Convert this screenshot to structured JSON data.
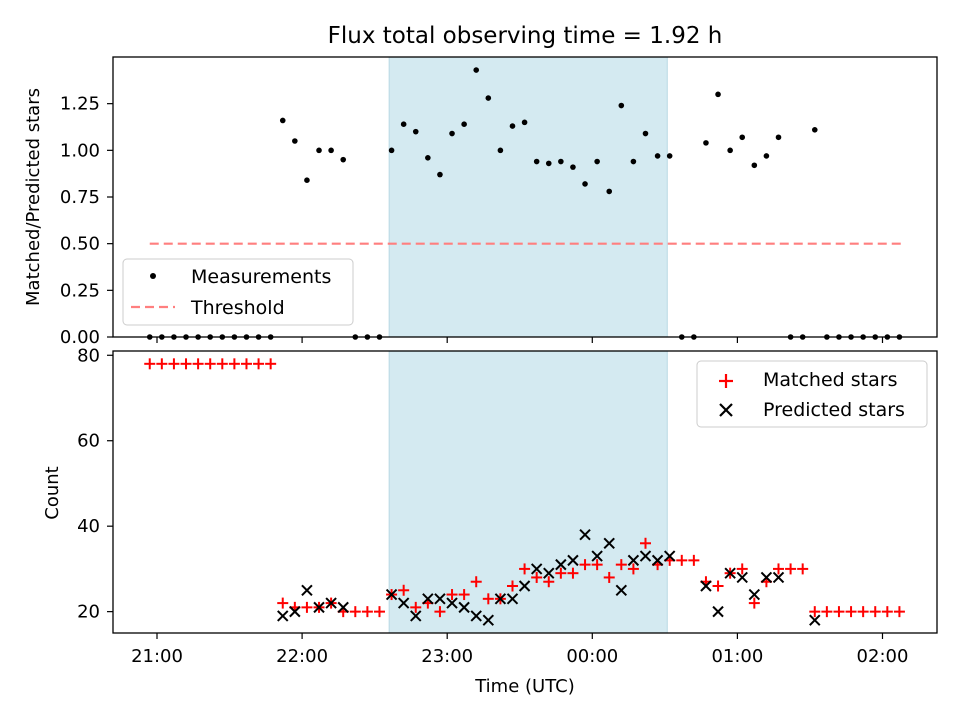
{
  "chart_data": [
    {
      "type": "scatter",
      "title": "Flux total observing time = 1.92 h",
      "ylabel": "Matched/Predicted stars",
      "xlabel": "",
      "ylim": [
        0,
        1.5
      ],
      "yticks": [
        "0.00",
        "0.25",
        "0.50",
        "0.75",
        "1.00",
        "1.25"
      ],
      "x_ticks": [
        "21:00",
        "22:00",
        "23:00",
        "00:00",
        "01:00",
        "02:00"
      ],
      "highlight_span": {
        "start": "22:36",
        "end": "00:31",
        "color": "#d4eaf1"
      },
      "legend_position": "lower-left",
      "threshold": {
        "name": "Threshold",
        "value": 0.5,
        "x_start": "20:57",
        "x_end": "02:08",
        "color": "#ff7f7f"
      },
      "series": [
        {
          "name": "Measurements",
          "color": "#000000",
          "points": [
            [
              "20:57",
              0
            ],
            [
              "21:02",
              0
            ],
            [
              "21:07",
              0
            ],
            [
              "21:12",
              0
            ],
            [
              "21:17",
              0
            ],
            [
              "21:22",
              0
            ],
            [
              "21:27",
              0
            ],
            [
              "21:32",
              0
            ],
            [
              "21:37",
              0
            ],
            [
              "21:42",
              0
            ],
            [
              "21:47",
              0
            ],
            [
              "21:52",
              1.16
            ],
            [
              "21:57",
              1.05
            ],
            [
              "22:02",
              0.84
            ],
            [
              "22:07",
              1.0
            ],
            [
              "22:12",
              1.0
            ],
            [
              "22:17",
              0.95
            ],
            [
              "22:22",
              0
            ],
            [
              "22:27",
              0
            ],
            [
              "22:32",
              0
            ],
            [
              "22:37",
              1.0
            ],
            [
              "22:42",
              1.14
            ],
            [
              "22:47",
              1.1
            ],
            [
              "22:52",
              0.96
            ],
            [
              "22:57",
              0.87
            ],
            [
              "23:02",
              1.09
            ],
            [
              "23:07",
              1.14
            ],
            [
              "23:12",
              1.43
            ],
            [
              "23:17",
              1.28
            ],
            [
              "23:22",
              1.0
            ],
            [
              "23:27",
              1.13
            ],
            [
              "23:32",
              1.15
            ],
            [
              "23:37",
              0.94
            ],
            [
              "23:42",
              0.93
            ],
            [
              "23:47",
              0.94
            ],
            [
              "23:52",
              0.91
            ],
            [
              "23:57",
              0.82
            ],
            [
              "00:02",
              0.94
            ],
            [
              "00:07",
              0.78
            ],
            [
              "00:12",
              1.24
            ],
            [
              "00:17",
              0.94
            ],
            [
              "00:22",
              1.09
            ],
            [
              "00:27",
              0.97
            ],
            [
              "00:32",
              0.97
            ],
            [
              "00:37",
              0
            ],
            [
              "00:42",
              0
            ],
            [
              "00:47",
              1.04
            ],
            [
              "00:52",
              1.3
            ],
            [
              "00:57",
              1.0
            ],
            [
              "01:02",
              1.07
            ],
            [
              "01:07",
              0.92
            ],
            [
              "01:12",
              0.97
            ],
            [
              "01:17",
              1.07
            ],
            [
              "01:22",
              0
            ],
            [
              "01:27",
              0
            ],
            [
              "01:32",
              1.11
            ],
            [
              "01:37",
              0
            ],
            [
              "01:42",
              0
            ],
            [
              "01:47",
              0
            ],
            [
              "01:52",
              0
            ],
            [
              "01:57",
              0
            ],
            [
              "02:02",
              0
            ],
            [
              "02:07",
              0
            ]
          ]
        }
      ]
    },
    {
      "type": "scatter",
      "title": "",
      "xlabel": "Time (UTC)",
      "ylabel": "Count",
      "ylim": [
        15,
        81
      ],
      "yticks": [
        "20",
        "40",
        "60",
        "80"
      ],
      "x_ticks": [
        "21:00",
        "22:00",
        "23:00",
        "00:00",
        "01:00",
        "02:00"
      ],
      "highlight_span": {
        "start": "22:36",
        "end": "00:31",
        "color": "#d4eaf1"
      },
      "legend_position": "upper-right",
      "series": [
        {
          "name": "Matched stars",
          "color": "#ff0000",
          "marker": "plus",
          "points": [
            [
              "20:57",
              78
            ],
            [
              "21:02",
              78
            ],
            [
              "21:07",
              78
            ],
            [
              "21:12",
              78
            ],
            [
              "21:17",
              78
            ],
            [
              "21:22",
              78
            ],
            [
              "21:27",
              78
            ],
            [
              "21:32",
              78
            ],
            [
              "21:37",
              78
            ],
            [
              "21:42",
              78
            ],
            [
              "21:47",
              78
            ],
            [
              "21:52",
              22
            ],
            [
              "21:57",
              21
            ],
            [
              "22:02",
              21
            ],
            [
              "22:07",
              21
            ],
            [
              "22:12",
              22
            ],
            [
              "22:17",
              20
            ],
            [
              "22:22",
              20
            ],
            [
              "22:27",
              20
            ],
            [
              "22:32",
              20
            ],
            [
              "22:37",
              24
            ],
            [
              "22:42",
              25
            ],
            [
              "22:47",
              21
            ],
            [
              "22:52",
              22
            ],
            [
              "22:57",
              20
            ],
            [
              "23:02",
              24
            ],
            [
              "23:07",
              24
            ],
            [
              "23:12",
              27
            ],
            [
              "23:17",
              23
            ],
            [
              "23:22",
              23
            ],
            [
              "23:27",
              26
            ],
            [
              "23:32",
              30
            ],
            [
              "23:37",
              28
            ],
            [
              "23:42",
              27
            ],
            [
              "23:47",
              29
            ],
            [
              "23:52",
              29
            ],
            [
              "23:57",
              31
            ],
            [
              "00:02",
              31
            ],
            [
              "00:07",
              28
            ],
            [
              "00:12",
              31
            ],
            [
              "00:17",
              30
            ],
            [
              "00:22",
              36
            ],
            [
              "00:27",
              31
            ],
            [
              "00:32",
              32
            ],
            [
              "00:37",
              32
            ],
            [
              "00:42",
              32
            ],
            [
              "00:47",
              27
            ],
            [
              "00:52",
              26
            ],
            [
              "00:57",
              29
            ],
            [
              "01:02",
              30
            ],
            [
              "01:07",
              22
            ],
            [
              "01:12",
              27
            ],
            [
              "01:17",
              30
            ],
            [
              "01:22",
              30
            ],
            [
              "01:27",
              30
            ],
            [
              "01:32",
              20
            ],
            [
              "01:37",
              20
            ],
            [
              "01:42",
              20
            ],
            [
              "01:47",
              20
            ],
            [
              "01:52",
              20
            ],
            [
              "01:57",
              20
            ],
            [
              "02:02",
              20
            ],
            [
              "02:07",
              20
            ]
          ]
        },
        {
          "name": "Predicted stars",
          "color": "#000000",
          "marker": "x",
          "points": [
            [
              "21:52",
              19
            ],
            [
              "21:57",
              20
            ],
            [
              "22:02",
              25
            ],
            [
              "22:07",
              21
            ],
            [
              "22:12",
              22
            ],
            [
              "22:17",
              21
            ],
            [
              "22:37",
              24
            ],
            [
              "22:42",
              22
            ],
            [
              "22:47",
              19
            ],
            [
              "22:52",
              23
            ],
            [
              "22:57",
              23
            ],
            [
              "23:02",
              22
            ],
            [
              "23:07",
              21
            ],
            [
              "23:12",
              19
            ],
            [
              "23:17",
              18
            ],
            [
              "23:22",
              23
            ],
            [
              "23:27",
              23
            ],
            [
              "23:32",
              26
            ],
            [
              "23:37",
              30
            ],
            [
              "23:42",
              29
            ],
            [
              "23:47",
              31
            ],
            [
              "23:52",
              32
            ],
            [
              "23:57",
              38
            ],
            [
              "00:02",
              33
            ],
            [
              "00:07",
              36
            ],
            [
              "00:12",
              25
            ],
            [
              "00:17",
              32
            ],
            [
              "00:22",
              33
            ],
            [
              "00:27",
              32
            ],
            [
              "00:32",
              33
            ],
            [
              "00:47",
              26
            ],
            [
              "00:52",
              20
            ],
            [
              "00:57",
              29
            ],
            [
              "01:02",
              28
            ],
            [
              "01:07",
              24
            ],
            [
              "01:12",
              28
            ],
            [
              "01:17",
              28
            ],
            [
              "01:32",
              18
            ]
          ]
        }
      ]
    }
  ]
}
